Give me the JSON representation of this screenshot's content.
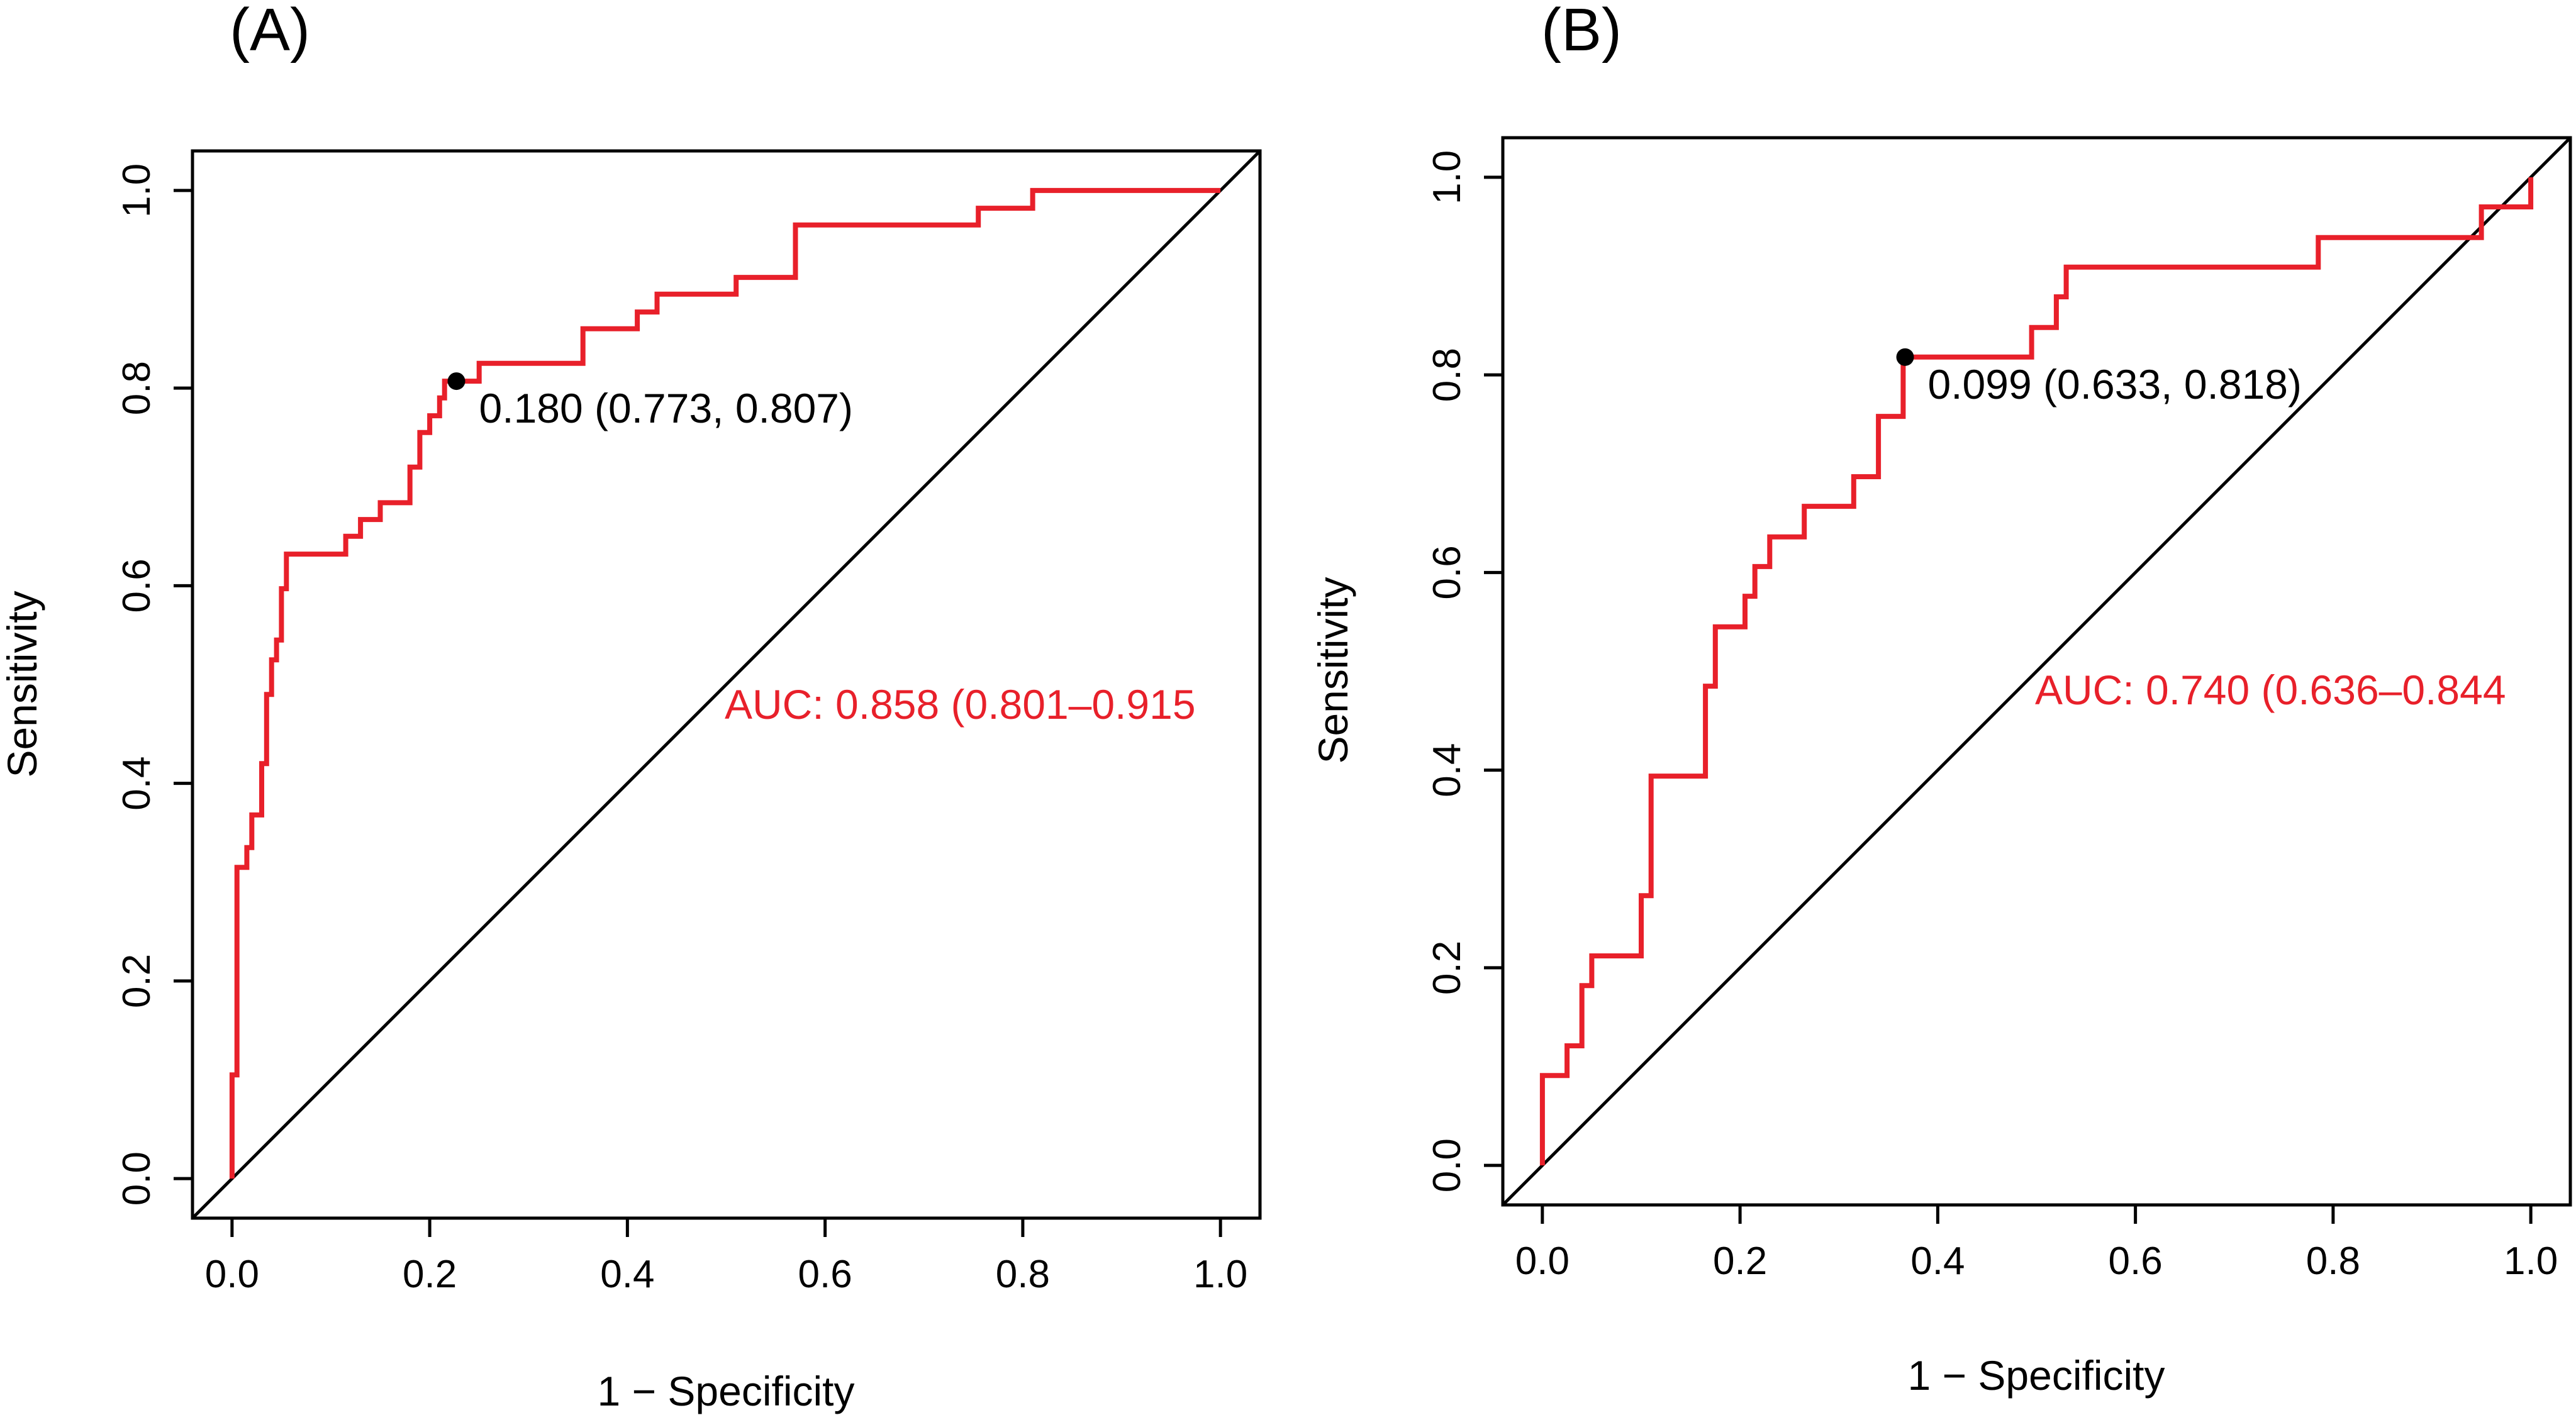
{
  "chart_data": [
    {
      "type": "line",
      "panel_label": "(A)",
      "title": "",
      "xlabel": "1 − Specificity",
      "ylabel": "Sensitivity",
      "xlim": [
        -0.04,
        1.04
      ],
      "ylim": [
        -0.04,
        1.04
      ],
      "xticks": [
        "0.0",
        "0.2",
        "0.4",
        "0.6",
        "0.8",
        "1.0"
      ],
      "yticks": [
        "0.0",
        "0.2",
        "0.4",
        "0.6",
        "0.8",
        "1.0"
      ],
      "grid": false,
      "legend": "none",
      "colors": {
        "curve": "#e8202a",
        "diagonal": "#000000",
        "point": "#000000",
        "auc_text": "#e8202a"
      },
      "series": [
        {
          "name": "ROC curve",
          "x": [
            0.0,
            0.0,
            0.005,
            0.005,
            0.015,
            0.015,
            0.02,
            0.02,
            0.03,
            0.03,
            0.035,
            0.035,
            0.04,
            0.04,
            0.045,
            0.045,
            0.05,
            0.05,
            0.055,
            0.055,
            0.06,
            0.06,
            0.115,
            0.115,
            0.13,
            0.13,
            0.15,
            0.15,
            0.18,
            0.18,
            0.19,
            0.19,
            0.2,
            0.2,
            0.21,
            0.21,
            0.215,
            0.215,
            0.225,
            0.225,
            0.25,
            0.25,
            0.355,
            0.355,
            0.41,
            0.41,
            0.43,
            0.43,
            0.51,
            0.51,
            0.57,
            0.57,
            0.755,
            0.755,
            0.81,
            0.81,
            1.0
          ],
          "y": [
            0.0,
            0.105,
            0.105,
            0.315,
            0.315,
            0.335,
            0.335,
            0.368,
            0.368,
            0.42,
            0.42,
            0.49,
            0.49,
            0.525,
            0.525,
            0.545,
            0.545,
            0.597,
            0.597,
            0.632,
            0.632,
            0.632,
            0.632,
            0.65,
            0.65,
            0.667,
            0.667,
            0.684,
            0.684,
            0.72,
            0.72,
            0.755,
            0.755,
            0.772,
            0.772,
            0.79,
            0.79,
            0.807,
            0.807,
            0.807,
            0.807,
            0.825,
            0.825,
            0.86,
            0.86,
            0.877,
            0.877,
            0.895,
            0.895,
            0.912,
            0.912,
            0.965,
            0.965,
            0.982,
            0.982,
            1.0,
            1.0
          ]
        },
        {
          "name": "Reference",
          "x": [
            0,
            1
          ],
          "y": [
            0,
            1
          ]
        }
      ],
      "threshold_point": {
        "x": 0.227,
        "y": 0.807,
        "label": "0.180 (0.773, 0.807)"
      },
      "auc_label": "AUC: 0.858 (0.801–0.915"
    },
    {
      "type": "line",
      "panel_label": "(B)",
      "title": "",
      "xlabel": "1 − Specificity",
      "ylabel": "Sensitivity",
      "xlim": [
        -0.04,
        1.04
      ],
      "ylim": [
        -0.04,
        1.04
      ],
      "xticks": [
        "0.0",
        "0.2",
        "0.4",
        "0.6",
        "0.8",
        "1.0"
      ],
      "yticks": [
        "0.0",
        "0.2",
        "0.4",
        "0.6",
        "0.8",
        "1.0"
      ],
      "grid": false,
      "legend": "none",
      "colors": {
        "curve": "#e8202a",
        "diagonal": "#000000",
        "point": "#000000",
        "auc_text": "#e8202a"
      },
      "series": [
        {
          "name": "ROC curve",
          "x": [
            0.0,
            0.0,
            0.025,
            0.025,
            0.04,
            0.04,
            0.05,
            0.05,
            0.1,
            0.1,
            0.11,
            0.11,
            0.165,
            0.165,
            0.175,
            0.175,
            0.205,
            0.205,
            0.215,
            0.215,
            0.23,
            0.23,
            0.265,
            0.265,
            0.315,
            0.315,
            0.34,
            0.34,
            0.365,
            0.365,
            0.495,
            0.495,
            0.52,
            0.52,
            0.53,
            0.53,
            0.785,
            0.785,
            0.95,
            0.95,
            1.0,
            1.0
          ],
          "y": [
            0.0,
            0.091,
            0.091,
            0.121,
            0.121,
            0.182,
            0.182,
            0.212,
            0.212,
            0.273,
            0.273,
            0.394,
            0.394,
            0.485,
            0.485,
            0.545,
            0.545,
            0.576,
            0.576,
            0.606,
            0.606,
            0.636,
            0.636,
            0.667,
            0.667,
            0.697,
            0.697,
            0.758,
            0.758,
            0.818,
            0.818,
            0.848,
            0.848,
            0.879,
            0.879,
            0.909,
            0.909,
            0.939,
            0.939,
            0.97,
            0.97,
            1.0
          ]
        },
        {
          "name": "Reference",
          "x": [
            0,
            1
          ],
          "y": [
            0,
            1
          ]
        }
      ],
      "threshold_point": {
        "x": 0.367,
        "y": 0.818,
        "label": "0.099 (0.633, 0.818)"
      },
      "auc_label": "AUC: 0.740 (0.636–0.844"
    }
  ]
}
